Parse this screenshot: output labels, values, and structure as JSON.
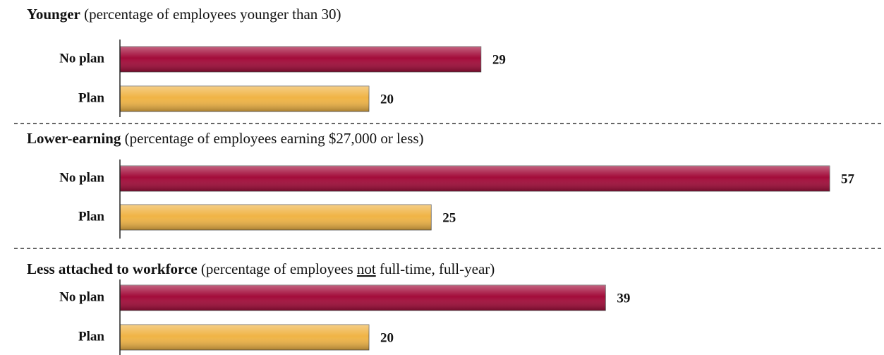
{
  "chart_data": [
    {
      "type": "bar",
      "title": "Younger",
      "subtitle": "(percentage of employees younger than 30)",
      "categories": [
        "No plan",
        "Plan"
      ],
      "values": [
        29,
        20
      ],
      "colors": [
        "#a30c3a",
        "#f0b445"
      ]
    },
    {
      "type": "bar",
      "title": "Lower-earning",
      "subtitle": "(percentage of employees earning $27,000 or less)",
      "categories": [
        "No plan",
        "Plan"
      ],
      "values": [
        57,
        25
      ],
      "colors": [
        "#a30c3a",
        "#f0b445"
      ]
    },
    {
      "type": "bar",
      "title": "Less attached to workforce",
      "subtitle": [
        {
          "text": "(percentage of employees "
        },
        {
          "text": "not",
          "underline": true
        },
        {
          "text": " full-time, full-year)"
        }
      ],
      "categories": [
        "No plan",
        "Plan"
      ],
      "values": [
        39,
        20
      ],
      "colors": [
        "#a30c3a",
        "#f0b445"
      ]
    }
  ]
}
